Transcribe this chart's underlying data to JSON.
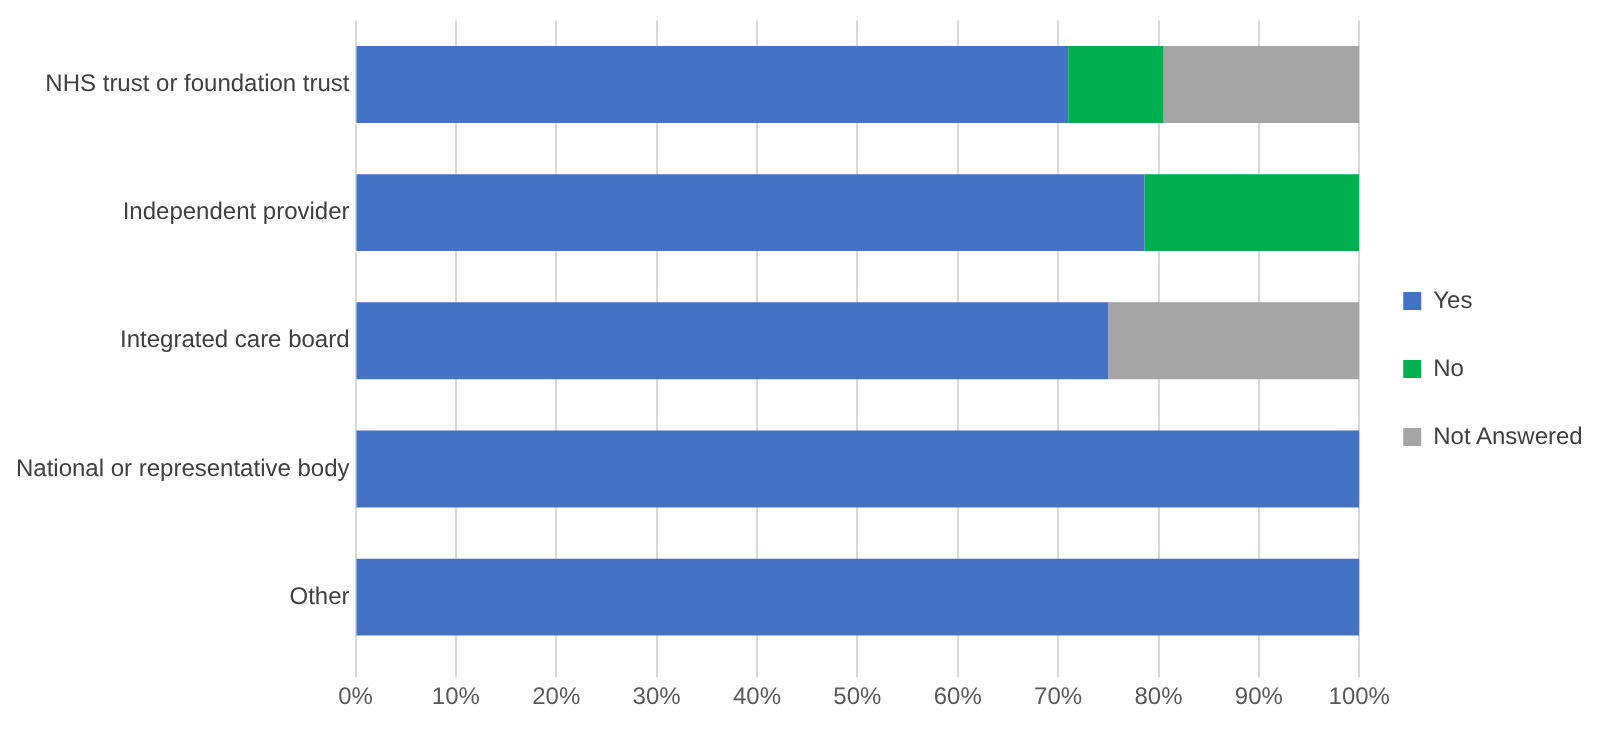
{
  "chart_data": {
    "type": "bar",
    "orientation": "horizontal",
    "stacked": true,
    "categories": [
      "NHS trust or foundation trust",
      "Independent provider",
      "Integrated care board",
      "National or representative body",
      "Other"
    ],
    "series": [
      {
        "name": "Yes",
        "color": "#4472c4",
        "values": [
          71,
          78.6,
          75,
          100,
          100
        ]
      },
      {
        "name": "No",
        "color": "#00b050",
        "values": [
          9.5,
          21.4,
          0,
          0,
          0
        ]
      },
      {
        "name": "Not Answered",
        "color": "#a5a5a5",
        "values": [
          19.5,
          0,
          25,
          0,
          0
        ]
      }
    ],
    "xlim": [
      0,
      100
    ],
    "xticks": [
      {
        "value": 0,
        "label": "0%"
      },
      {
        "value": 10,
        "label": "10%"
      },
      {
        "value": 20,
        "label": "20%"
      },
      {
        "value": 30,
        "label": "30%"
      },
      {
        "value": 40,
        "label": "40%"
      },
      {
        "value": 50,
        "label": "50%"
      },
      {
        "value": 60,
        "label": "60%"
      },
      {
        "value": 70,
        "label": "70%"
      },
      {
        "value": 80,
        "label": "80%"
      },
      {
        "value": 90,
        "label": "90%"
      },
      {
        "value": 100,
        "label": "100%"
      }
    ],
    "grid": "x",
    "legend": "right"
  }
}
